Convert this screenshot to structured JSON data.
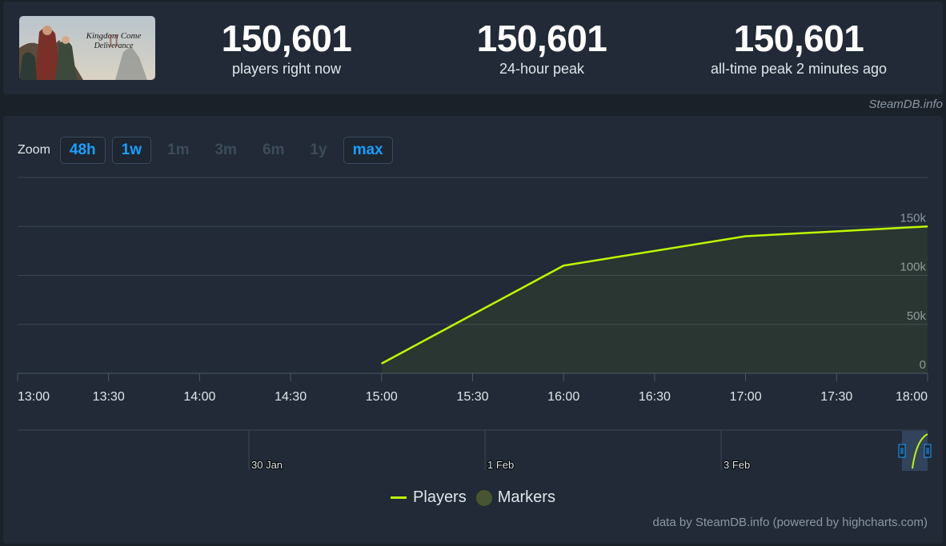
{
  "header": {
    "game_title_art": "Kingdom Come Deliverance II",
    "stats": [
      {
        "value": "150,601",
        "label": "players right now"
      },
      {
        "value": "150,601",
        "label": "24-hour peak"
      },
      {
        "value": "150,601",
        "label": "all-time peak 2 minutes ago"
      }
    ],
    "credit": "SteamDB.info"
  },
  "zoom": {
    "label": "Zoom",
    "buttons": [
      {
        "label": "48h",
        "active": true
      },
      {
        "label": "1w",
        "active": true
      },
      {
        "label": "1m",
        "active": false
      },
      {
        "label": "3m",
        "active": false
      },
      {
        "label": "6m",
        "active": false
      },
      {
        "label": "1y",
        "active": false
      },
      {
        "label": "max",
        "active": true
      }
    ]
  },
  "chart_data": {
    "type": "area",
    "x_ticks": [
      "13:00",
      "13:30",
      "14:00",
      "14:30",
      "15:00",
      "15:30",
      "16:00",
      "16:30",
      "17:00",
      "17:30",
      "18:00"
    ],
    "y_ticks": [
      "0",
      "50k",
      "100k",
      "150k"
    ],
    "ylim": [
      0,
      200000
    ],
    "series": [
      {
        "name": "Players",
        "color": "#bef800",
        "x": [
          "15:00",
          "16:00",
          "17:00",
          "18:00"
        ],
        "values": [
          10000,
          110000,
          140000,
          150000
        ]
      }
    ],
    "navigator_labels": [
      "30 Jan",
      "1 Feb",
      "3 Feb"
    ],
    "legend": [
      {
        "name": "Players",
        "color": "#bef800"
      },
      {
        "name": "Markers",
        "color": "#495530"
      }
    ],
    "legend_position": "bottom-center",
    "grid": true
  },
  "footer": {
    "credit": "data by SteamDB.info (powered by highcharts.com)"
  }
}
